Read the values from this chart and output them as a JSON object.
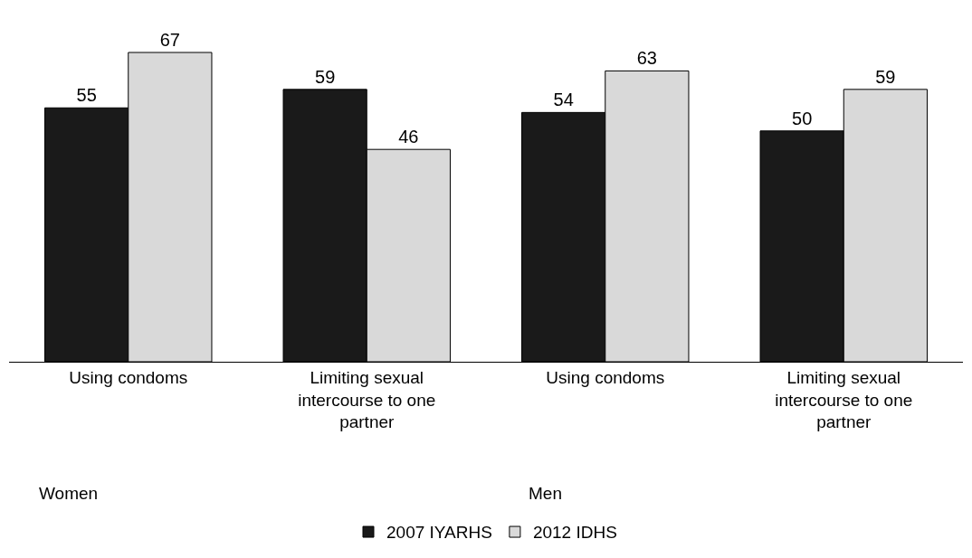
{
  "chart_data": {
    "type": "bar",
    "categories": [
      "Using condoms",
      "Limiting sexual intercourse to one partner",
      "Using condoms",
      "Limiting sexual intercourse to one partner"
    ],
    "series": [
      {
        "name": "2007 IYARHS",
        "color": "#1a1a1a",
        "values": [
          55,
          59,
          54,
          50
        ]
      },
      {
        "name": "2012 IDHS",
        "color": "#d9d9d9",
        "values": [
          67,
          46,
          63,
          59
        ]
      }
    ],
    "annotations": [
      "Women",
      "Men"
    ],
    "data_labels": true,
    "legend": "bottom"
  }
}
